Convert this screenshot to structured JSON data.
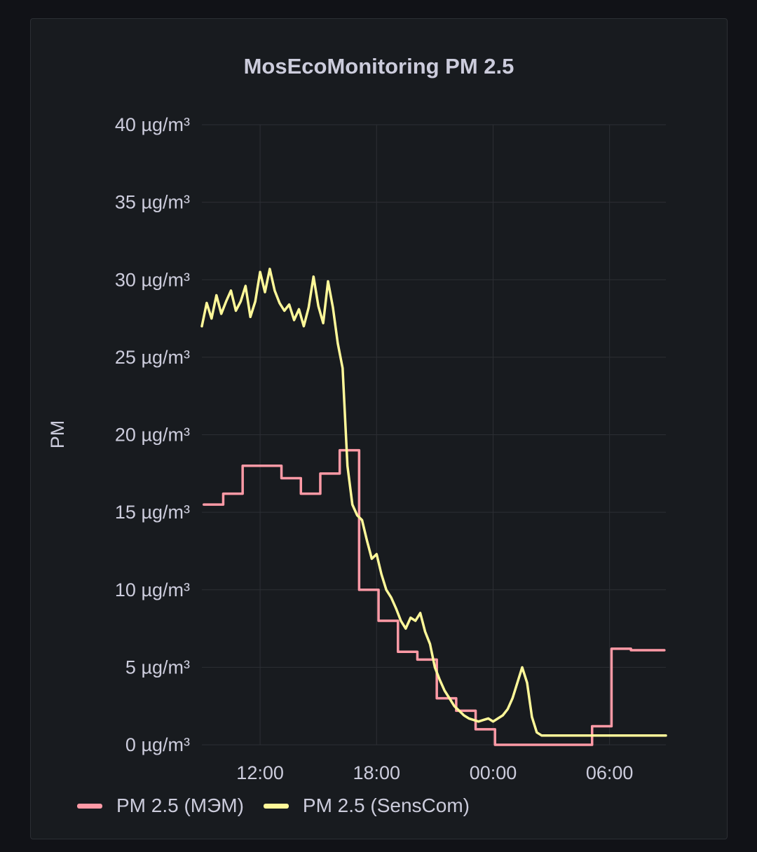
{
  "panel": {
    "title": "MosEcoMonitoring PM 2.5"
  },
  "colors": {
    "background": "#111217",
    "panel": "#181b1f",
    "grid": "#2c2f34",
    "text": "#ccccdc",
    "mem": "#ff9aa6",
    "senscom": "#fff899"
  },
  "chart_data": {
    "type": "line",
    "title": "MosEcoMonitoring PM 2.5",
    "xlabel": "",
    "ylabel": "PM",
    "unit": "µg/m³",
    "ylim": [
      0,
      40
    ],
    "y_ticks": [
      "0 µg/m³",
      "5 µg/m³",
      "10 µg/m³",
      "15 µg/m³",
      "20 µg/m³",
      "25 µg/m³",
      "30 µg/m³",
      "35 µg/m³",
      "40 µg/m³"
    ],
    "x_ticks": [
      "12:00",
      "18:00",
      "00:00",
      "06:00"
    ],
    "x_range_hours": [
      9.0,
      32.9
    ],
    "grid": true,
    "legend_position": "bottom-left",
    "series": [
      {
        "name": "PM 2.5 (МЭМ)",
        "color": "#ff9aa6",
        "step": true,
        "x": [
          9.1,
          10.1,
          11.1,
          12.1,
          13.1,
          14.1,
          15.1,
          16.1,
          17.1,
          18.1,
          19.1,
          20.1,
          21.1,
          22.1,
          23.1,
          24.1,
          25.1,
          26.1,
          27.1,
          28.1,
          29.1,
          30.1,
          31.1,
          32.1
        ],
        "values": [
          15.5,
          16.2,
          18.0,
          18.0,
          17.2,
          16.2,
          17.5,
          19.0,
          10.0,
          8.0,
          6.0,
          5.5,
          3.0,
          2.2,
          1.0,
          0,
          0,
          0,
          0,
          0,
          1.2,
          6.2,
          6.1,
          6.1
        ]
      },
      {
        "name": "PM 2.5 (SensCom)",
        "color": "#fff899",
        "step": false,
        "x": [
          9.0,
          9.25,
          9.5,
          9.75,
          10.0,
          10.25,
          10.5,
          10.75,
          11.0,
          11.25,
          11.5,
          11.75,
          12.0,
          12.25,
          12.5,
          12.75,
          13.0,
          13.25,
          13.5,
          13.75,
          14.0,
          14.25,
          14.5,
          14.75,
          15.0,
          15.25,
          15.5,
          15.75,
          16.0,
          16.25,
          16.5,
          16.75,
          17.0,
          17.25,
          17.5,
          17.75,
          18.0,
          18.25,
          18.5,
          18.75,
          19.0,
          19.25,
          19.5,
          19.75,
          20.0,
          20.25,
          20.5,
          20.75,
          21.0,
          21.25,
          21.5,
          21.75,
          22.0,
          22.25,
          22.5,
          22.75,
          23.0,
          23.25,
          23.5,
          23.75,
          24.0,
          24.25,
          24.5,
          24.75,
          25.0,
          25.25,
          25.5,
          25.75,
          26.0,
          26.25,
          26.5,
          26.75,
          27.0,
          27.25,
          27.5,
          27.75,
          28.0,
          28.25,
          28.5,
          28.75,
          29.0,
          29.25,
          29.5,
          29.75,
          30.0,
          30.25,
          30.5,
          30.75,
          31.0,
          31.25,
          31.5,
          31.75,
          32.0,
          32.25,
          32.5,
          32.9
        ],
        "values": [
          27.0,
          28.5,
          27.5,
          29.0,
          27.8,
          28.6,
          29.3,
          28.0,
          28.6,
          29.6,
          27.6,
          28.6,
          30.5,
          29.2,
          30.7,
          29.3,
          28.5,
          28.0,
          28.4,
          27.4,
          28.1,
          27.0,
          28.2,
          30.2,
          28.3,
          27.2,
          29.9,
          28.2,
          25.9,
          24.3,
          18.0,
          15.5,
          14.8,
          14.5,
          13.2,
          12.0,
          12.3,
          11.0,
          10.0,
          9.5,
          8.8,
          8.0,
          7.5,
          8.2,
          8.0,
          8.5,
          7.3,
          6.5,
          5.0,
          4.2,
          3.5,
          3.0,
          2.5,
          2.2,
          1.9,
          1.7,
          1.6,
          1.5,
          1.6,
          1.7,
          1.5,
          1.7,
          1.9,
          2.3,
          3.0,
          4.0,
          5.0,
          4.0,
          1.8,
          0.8,
          0.6,
          0.6,
          0.6,
          0.6,
          0.6,
          0.6,
          0.6,
          0.6,
          0.6,
          0.6,
          0.6,
          0.6,
          0.6,
          0.6,
          0.6,
          0.6,
          0.6,
          0.6,
          0.6,
          0.6,
          0.6,
          0.6,
          0.6,
          0.6,
          0.6,
          0.6
        ]
      }
    ]
  },
  "legend": {
    "items": [
      {
        "label": "PM 2.5 (МЭМ)",
        "color": "#ff9aa6"
      },
      {
        "label": "PM 2.5 (SensCom)",
        "color": "#fff899"
      }
    ]
  }
}
